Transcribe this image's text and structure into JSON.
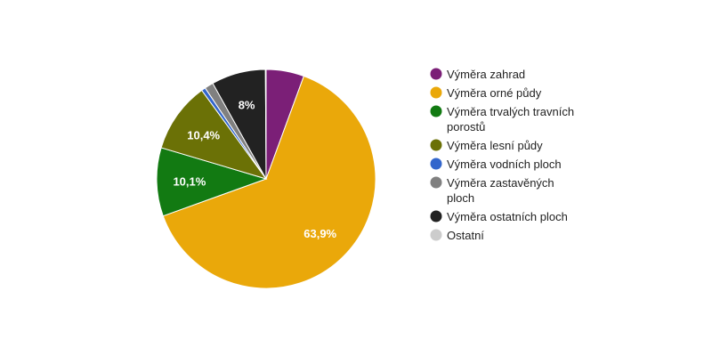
{
  "chart_data": {
    "type": "pie",
    "title": "",
    "legend_position": "right",
    "slices": [
      {
        "label": "Výměra zahrad",
        "value": 5.6,
        "color": "#7b1f77",
        "data_label": ""
      },
      {
        "label": "Výměra orné půdy",
        "value": 63.9,
        "color": "#eaa80a",
        "data_label": "63,9%"
      },
      {
        "label": "Výměra trvalých travních porostů",
        "value": 10.1,
        "color": "#127a12",
        "data_label": "10,1%"
      },
      {
        "label": "Výměra lesní půdy",
        "value": 10.4,
        "color": "#6b7106",
        "data_label": "10,4%"
      },
      {
        "label": "Výměra vodních ploch",
        "value": 0.6,
        "color": "#3366cc",
        "data_label": ""
      },
      {
        "label": "Výměra zastavěných ploch",
        "value": 1.3,
        "color": "#808080",
        "data_label": ""
      },
      {
        "label": "Výměra ostatních ploch",
        "value": 8.0,
        "color": "#222222",
        "data_label": "8%"
      },
      {
        "label": "Ostatní",
        "value": 0.1,
        "color": "#cccccc",
        "data_label": ""
      }
    ]
  }
}
